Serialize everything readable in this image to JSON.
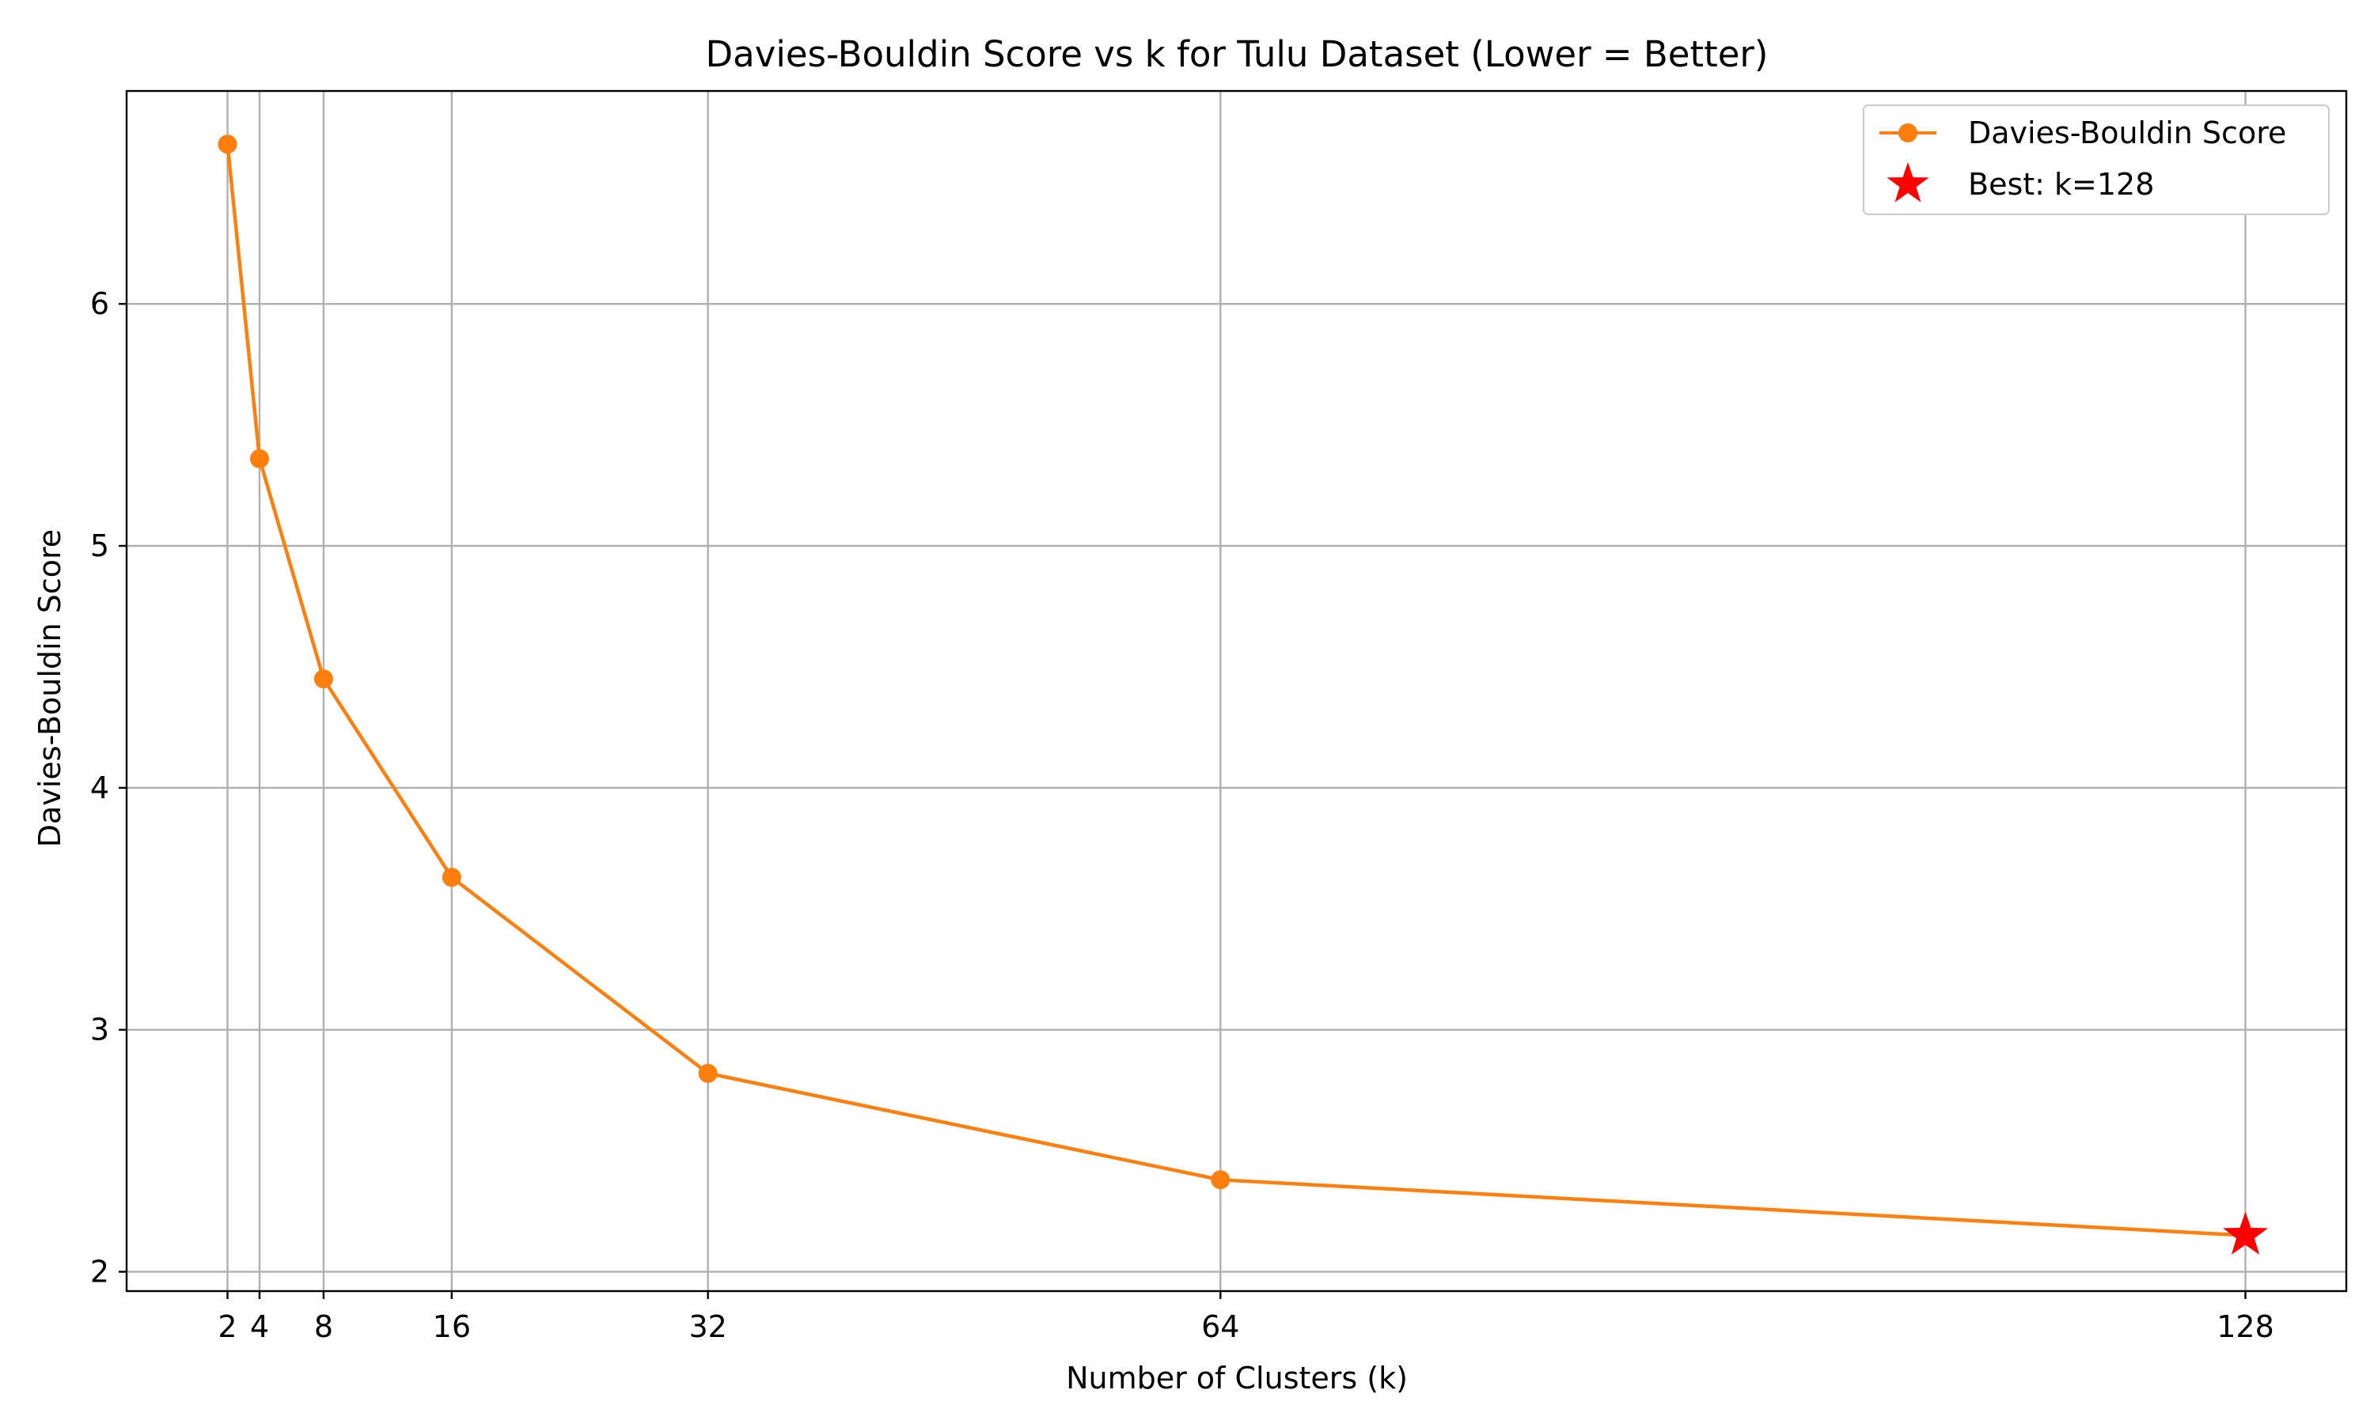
{
  "chart_data": {
    "type": "line",
    "title": "Davies-Bouldin Score vs k for Tulu Dataset (Lower = Better)",
    "xlabel": "Number of Clusters (k)",
    "ylabel": "Davies-Bouldin Score",
    "x": [
      2,
      4,
      8,
      16,
      32,
      64,
      128
    ],
    "x_tick_labels": [
      "2",
      "4",
      "8",
      "16",
      "32",
      "64",
      "128"
    ],
    "y_ticks": [
      2,
      3,
      4,
      5,
      6
    ],
    "y_tick_labels": [
      "2",
      "3",
      "4",
      "5",
      "6"
    ],
    "xlim": [
      -4.3,
      134.3
    ],
    "ylim": [
      1.92,
      6.88
    ],
    "grid": true,
    "series": [
      {
        "name": "Davies-Bouldin Score",
        "values": [
          6.66,
          5.36,
          4.45,
          3.63,
          2.82,
          2.38,
          2.15
        ],
        "color": "#ff7f0e",
        "marker": "circle"
      }
    ],
    "best": {
      "label": "Best: k=128",
      "x": 128,
      "y": 2.15,
      "color": "#ff0000",
      "marker": "star"
    },
    "legend_position": "top-right"
  }
}
